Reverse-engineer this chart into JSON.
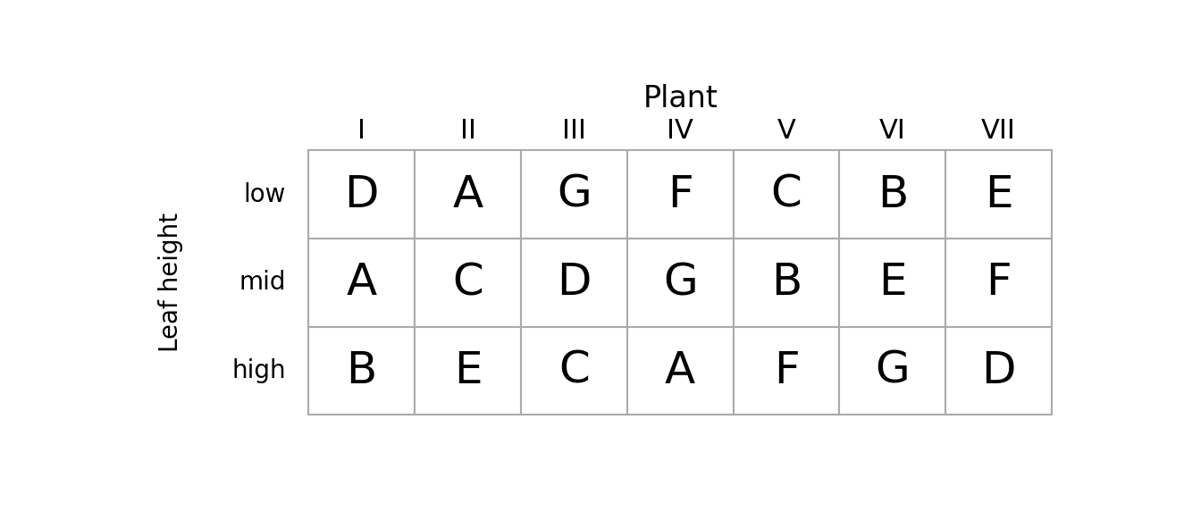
{
  "title": "Plant",
  "col_labels": [
    "I",
    "II",
    "III",
    "IV",
    "V",
    "VI",
    "VII"
  ],
  "row_labels": [
    "low",
    "mid",
    "high"
  ],
  "ylabel": "Leaf height",
  "table_data": [
    [
      "D",
      "A",
      "G",
      "F",
      "C",
      "B",
      "E"
    ],
    [
      "A",
      "C",
      "D",
      "G",
      "B",
      "E",
      "F"
    ],
    [
      "B",
      "E",
      "C",
      "A",
      "F",
      "G",
      "D"
    ]
  ],
  "background_color": "#ffffff",
  "cell_bg_color": "#ffffff",
  "grid_color": "#aaaaaa",
  "text_color": "#000000",
  "title_fontsize": 24,
  "col_label_fontsize": 22,
  "row_label_fontsize": 20,
  "cell_fontsize": 36,
  "ylabel_fontsize": 20
}
